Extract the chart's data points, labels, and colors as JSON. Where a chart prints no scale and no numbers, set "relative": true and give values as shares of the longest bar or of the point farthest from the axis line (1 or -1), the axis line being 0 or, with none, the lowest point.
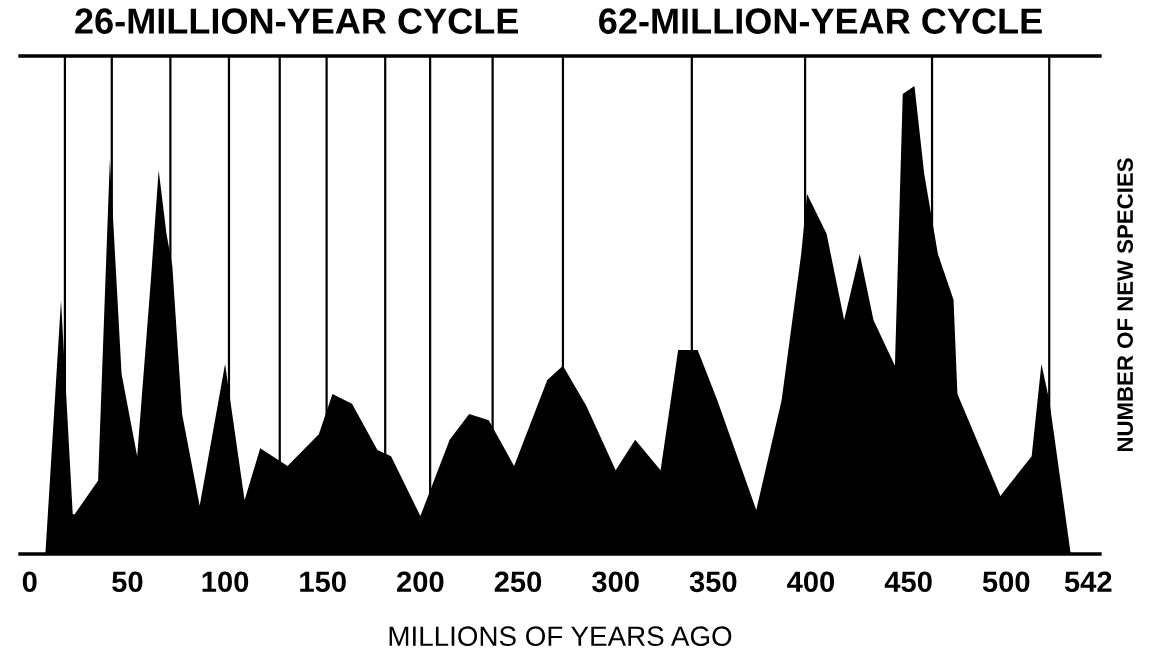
{
  "chart_data": {
    "type": "area",
    "relative": true,
    "xlabel": "MILLIONS OF YEARS AGO",
    "ylabel": "NUMBER OF NEW SPECIES",
    "annotations": [
      "26-MILLION-YEAR CYCLE",
      "62-MILLION-YEAR CYCLE"
    ],
    "xlim": [
      -5,
      548
    ],
    "xticks": [
      0,
      50,
      100,
      150,
      200,
      250,
      300,
      350,
      400,
      450,
      500,
      542
    ],
    "grid": false,
    "legend": false,
    "series": [
      {
        "color": "#000000",
        "x": [
          8,
          16,
          22,
          23,
          35,
          41,
          47,
          55,
          62,
          66,
          70,
          73,
          78,
          87,
          100,
          110,
          118,
          132,
          148,
          155,
          165,
          178,
          185,
          200,
          215,
          225,
          235,
          248,
          265,
          273,
          285,
          300,
          310,
          323,
          332,
          342,
          352,
          372,
          385,
          395,
          398,
          408,
          417,
          425,
          432,
          443,
          447,
          453,
          458,
          465,
          473,
          475,
          497,
          513,
          518,
          522,
          533
        ],
        "values": [
          0,
          0.542,
          0.085,
          0.085,
          0.157,
          0.842,
          0.385,
          0.209,
          0.585,
          0.82,
          0.684,
          0.615,
          0.299,
          0.103,
          0.406,
          0.115,
          0.226,
          0.188,
          0.256,
          0.342,
          0.321,
          0.222,
          0.209,
          0.081,
          0.244,
          0.299,
          0.286,
          0.188,
          0.372,
          0.402,
          0.316,
          0.179,
          0.244,
          0.179,
          0.436,
          0.436,
          0.329,
          0.094,
          0.329,
          0.641,
          0.769,
          0.684,
          0.5,
          0.641,
          0.5,
          0.402,
          0.983,
          1.0,
          0.812,
          0.641,
          0.543,
          0.342,
          0.124,
          0.209,
          0.406,
          0.329,
          0
        ]
      }
    ],
    "ref_lines": [
      {
        "axis": "x",
        "value": 18,
        "color": "#000000"
      },
      {
        "axis": "x",
        "value": 42,
        "color": "#000000"
      },
      {
        "axis": "x",
        "value": 72,
        "color": "#000000"
      },
      {
        "axis": "x",
        "value": 102,
        "color": "#000000"
      },
      {
        "axis": "x",
        "value": 128,
        "color": "#000000"
      },
      {
        "axis": "x",
        "value": 152,
        "color": "#000000"
      },
      {
        "axis": "x",
        "value": 182,
        "color": "#000000"
      },
      {
        "axis": "x",
        "value": 205,
        "color": "#000000"
      },
      {
        "axis": "x",
        "value": 237,
        "color": "#000000"
      },
      {
        "axis": "x",
        "value": 273,
        "color": "#000000"
      },
      {
        "axis": "x",
        "value": 339,
        "color": "#000000"
      },
      {
        "axis": "x",
        "value": 397,
        "color": "#000000"
      },
      {
        "axis": "x",
        "value": 462,
        "color": "#000000"
      },
      {
        "axis": "x",
        "value": 522,
        "color": "#000000"
      }
    ]
  }
}
